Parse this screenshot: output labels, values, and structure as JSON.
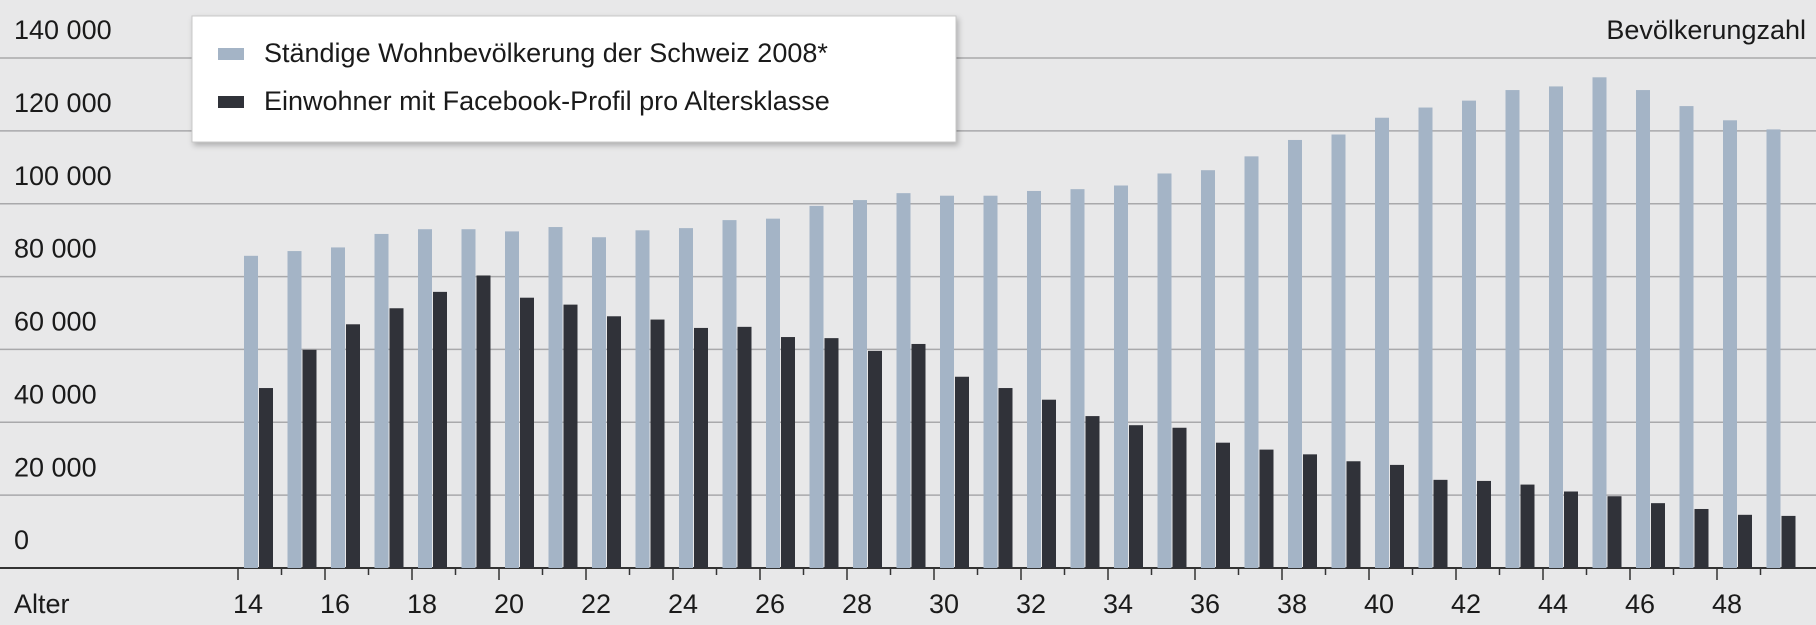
{
  "chart_data": {
    "type": "bar",
    "ylabel": "Bevölkerungzahl",
    "xlabel": "Alter",
    "categories": [
      "14",
      null,
      "16",
      null,
      "18",
      null,
      "20",
      null,
      "22",
      null,
      "24",
      null,
      "26",
      null,
      "28",
      null,
      "30",
      null,
      "32",
      null,
      "34",
      null,
      "36",
      null,
      "38",
      null,
      "40",
      null,
      "42",
      null,
      "44",
      null,
      "46",
      null,
      "48",
      null
    ],
    "series": [
      {
        "name": "Ständige Wohnbevölkerung der Schweiz 2008*",
        "color": "#a4b4c6",
        "values": [
          85700,
          87000,
          88000,
          91700,
          93000,
          93000,
          92400,
          93600,
          90800,
          92700,
          93300,
          95500,
          95900,
          99400,
          101000,
          102900,
          102200,
          102200,
          103500,
          104000,
          105000,
          108300,
          109200,
          113000,
          117500,
          119000,
          123600,
          126400,
          128300,
          131200,
          132200,
          134700,
          131200,
          126800,
          122900,
          120400
        ]
      },
      {
        "name": "Einwohner mit Facebook-Profil pro Altersklasse",
        "color": "#303239",
        "values": [
          49400,
          59900,
          66900,
          71300,
          75800,
          80300,
          74200,
          72300,
          69100,
          68200,
          65900,
          66200,
          63400,
          63100,
          59600,
          61500,
          52500,
          49400,
          46200,
          41700,
          39200,
          38500,
          34400,
          32500,
          31200,
          29300,
          28300,
          24200,
          23900,
          22900,
          21000,
          19700,
          17800,
          16200,
          14600,
          14300
        ]
      }
    ],
    "ylim": [
      0,
      140000
    ],
    "yticks": [
      0,
      {
        "value": 20000,
        "label": "20 000"
      },
      {
        "value": 40000,
        "label": "40 000"
      },
      {
        "value": 60000,
        "label": "60 000"
      },
      {
        "value": 80000,
        "label": "80 000"
      },
      {
        "value": 100000,
        "label": "100 000"
      },
      {
        "value": 120000,
        "label": "120 000"
      },
      {
        "value": 140000,
        "label": "140 000"
      }
    ],
    "grid": true
  }
}
